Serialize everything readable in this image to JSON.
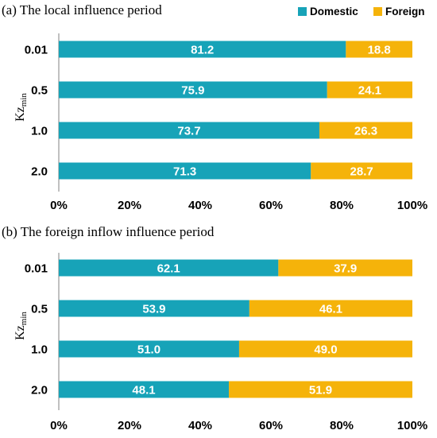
{
  "legend": {
    "items": [
      {
        "name": "Domestic",
        "color": "#17A3B8"
      },
      {
        "name": "Foreign",
        "color": "#F5B30A"
      }
    ]
  },
  "ylabel": {
    "main": "Kz",
    "sub": "min"
  },
  "chart_data": [
    {
      "type": "bar",
      "orientation": "horizontal",
      "stacked": true,
      "title": "(a) The local influence period",
      "categories": [
        "0.01",
        "0.5",
        "1.0",
        "2.0"
      ],
      "series": [
        {
          "name": "Domestic",
          "values": [
            81.2,
            75.9,
            73.7,
            71.3
          ]
        },
        {
          "name": "Foreign",
          "values": [
            18.8,
            24.1,
            26.3,
            28.7
          ]
        }
      ],
      "xlim": [
        0,
        100
      ],
      "xticks": [
        "0%",
        "20%",
        "40%",
        "60%",
        "80%",
        "100%"
      ],
      "ylabel": "Kzmin",
      "legend": "top-right",
      "grid": false
    },
    {
      "type": "bar",
      "orientation": "horizontal",
      "stacked": true,
      "title": "(b) The foreign inflow influence period",
      "categories": [
        "0.01",
        "0.5",
        "1.0",
        "2.0"
      ],
      "series": [
        {
          "name": "Domestic",
          "values": [
            62.1,
            53.9,
            51.0,
            48.1
          ]
        },
        {
          "name": "Foreign",
          "values": [
            37.9,
            46.1,
            49.0,
            51.9
          ]
        }
      ],
      "xlim": [
        0,
        100
      ],
      "xticks": [
        "0%",
        "20%",
        "40%",
        "60%",
        "80%",
        "100%"
      ],
      "ylabel": "Kzmin",
      "grid": false
    }
  ]
}
